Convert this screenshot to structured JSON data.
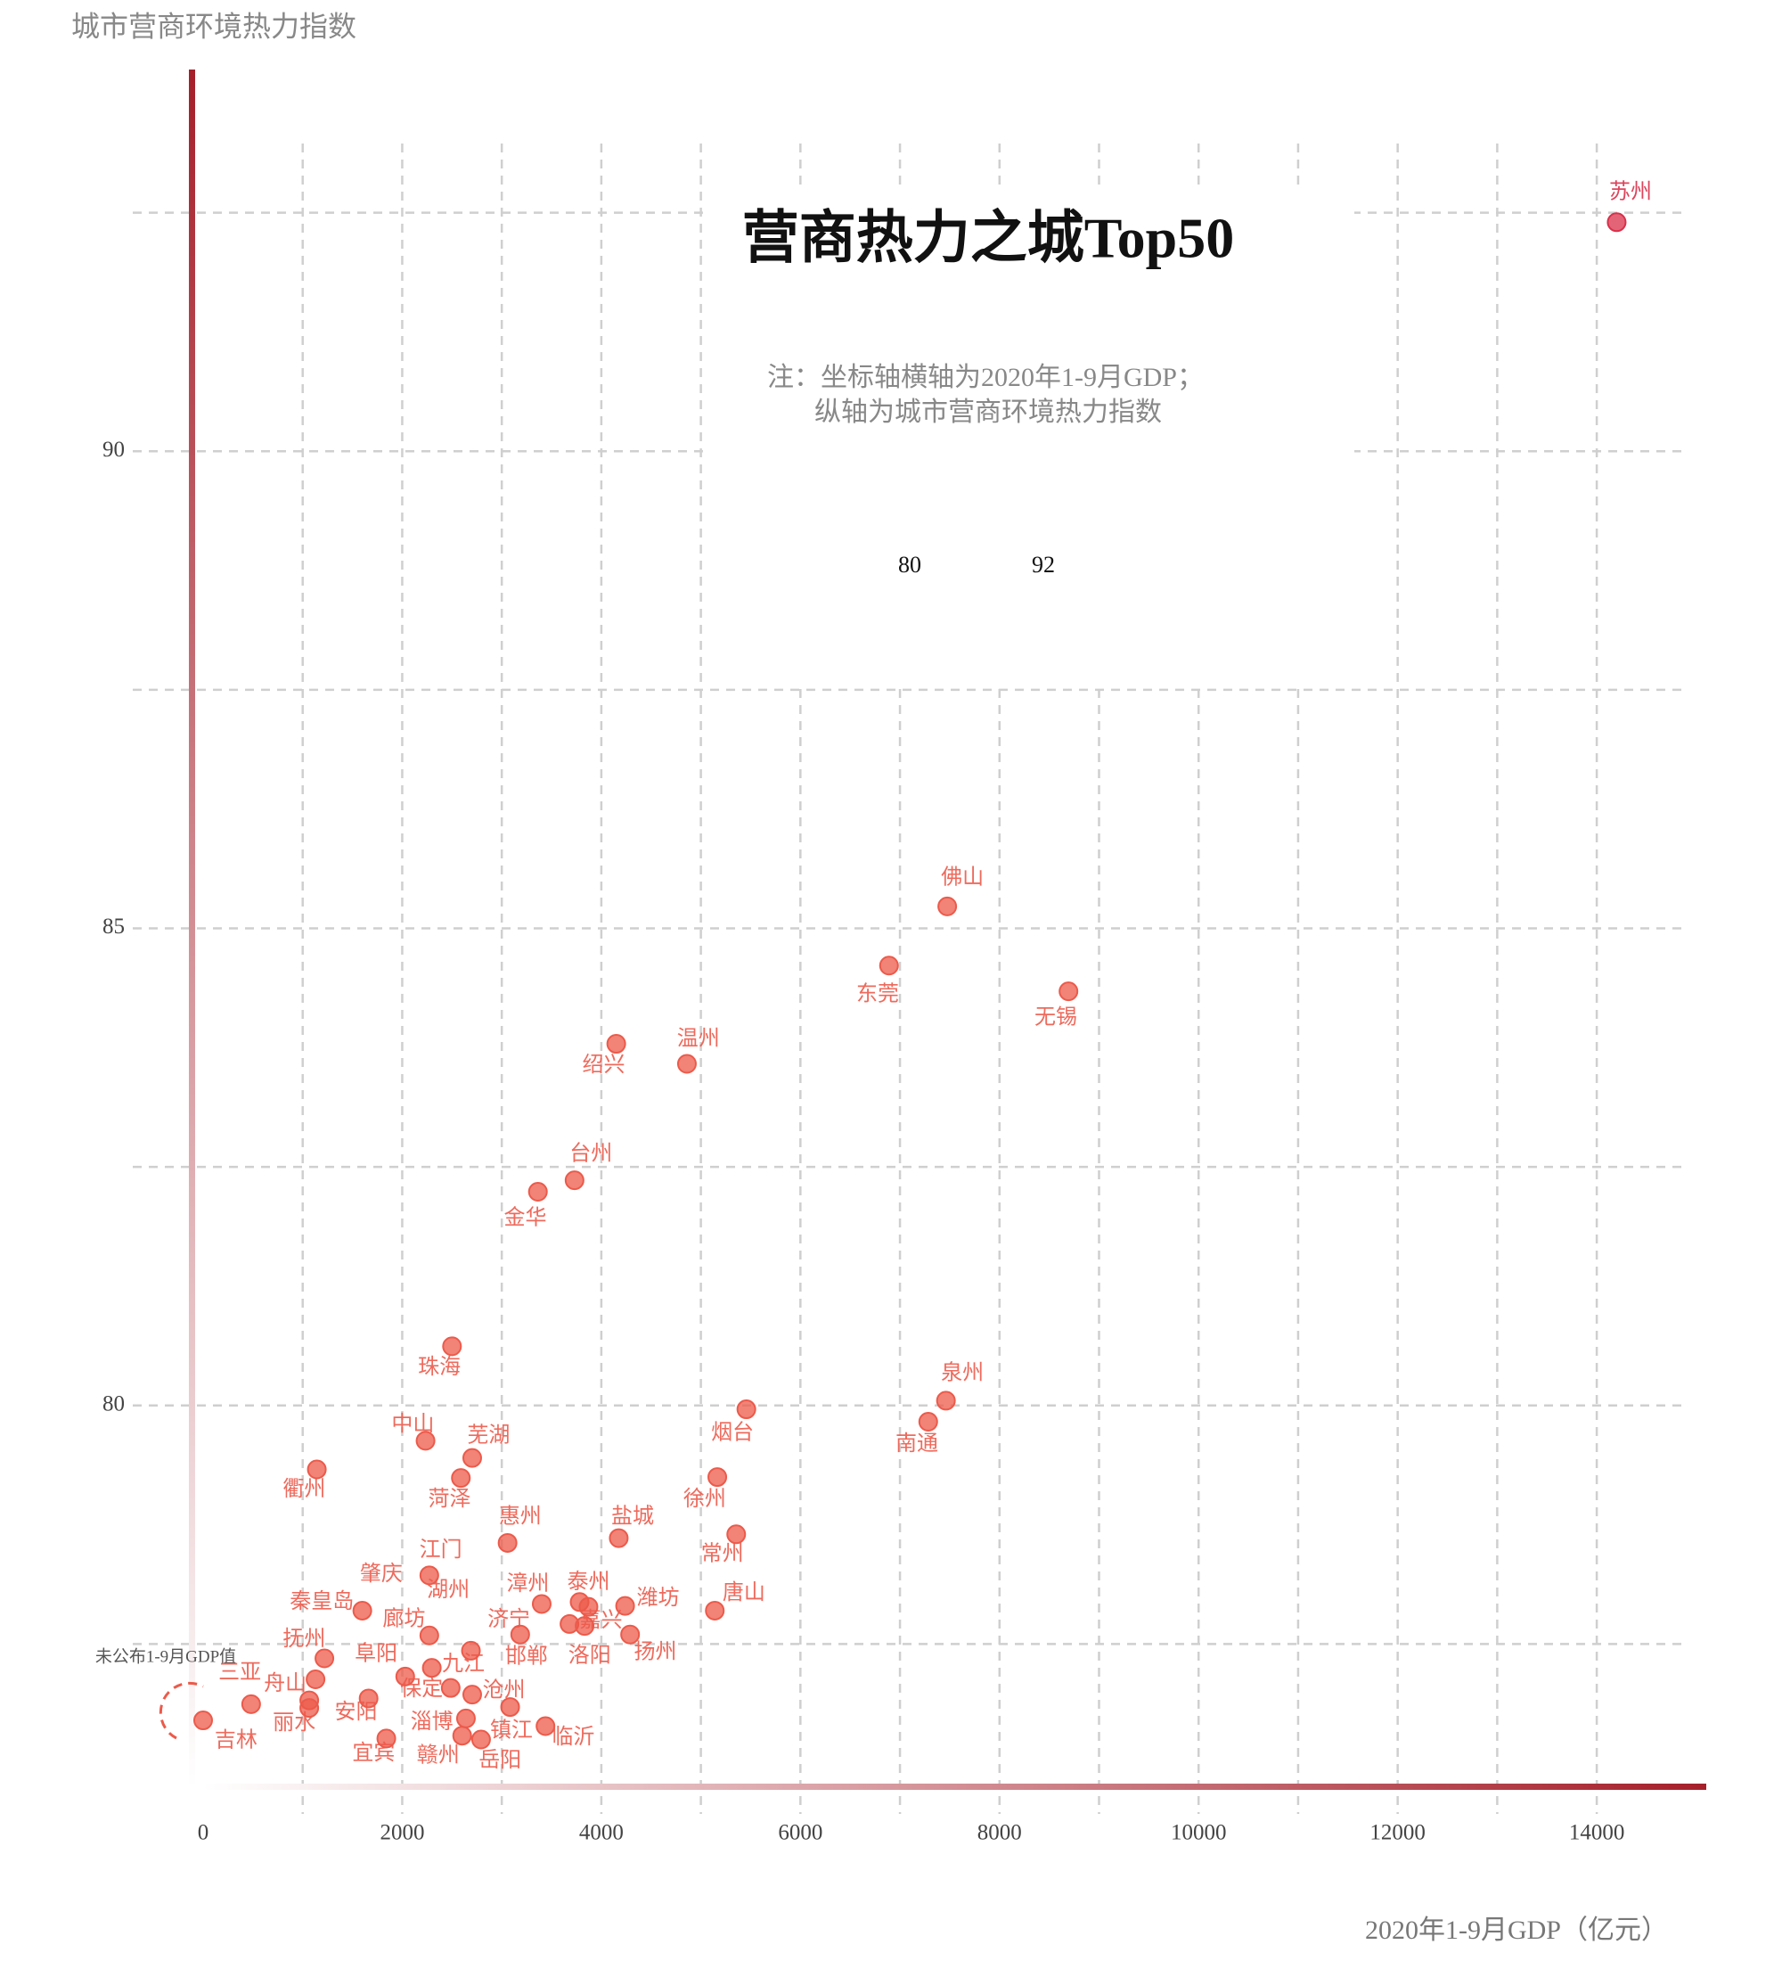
{
  "chart_data": {
    "type": "scatter",
    "title": "营商热力之城Top50",
    "subtitle": [
      "注：坐标轴横轴为2020年1-9月GDP；",
      "纵轴为城市营商环境热力指数"
    ],
    "x_label": "2020年1-9月GDP（亿元）",
    "y_label": "城市营商环境热力指数",
    "annotations": [
      "80",
      "92",
      "未公布1-9月GDP值"
    ],
    "color": "#ec5a4a",
    "labels": [
      "苏州",
      "佛山",
      "东莞",
      "无锡",
      "绍兴",
      "温州",
      "台州",
      "金华",
      "珠海",
      "烟台",
      "泉州",
      "南通",
      "中山",
      "芜湖",
      "衢州",
      "菏泽",
      "徐州",
      "常州",
      "盐城",
      "惠州",
      "江门",
      "唐山",
      "肇庆",
      "漳州",
      "泰州",
      "潍坊",
      "嘉兴",
      "济宁",
      "湖州",
      "扬州",
      "邯郸",
      "秦皇岛",
      "抚州",
      "舟山",
      "丽水",
      "三亚",
      "吉林",
      "安阳",
      "宜宾",
      "阜阳",
      "廊坊",
      "九江",
      "保定",
      "沧州",
      "淄博",
      "临沂",
      "赣州",
      "岳阳",
      "洛阳",
      "镇江"
    ],
    "x": [
      14200,
      7475,
      6890,
      8693,
      4150,
      4860,
      3731,
      3363,
      2500,
      5457,
      7462,
      7284,
      2234,
      2703,
      1142,
      2589,
      5165,
      5355,
      4175,
      3058,
      2272,
      5140,
      1599,
      3401,
      3782,
      4239,
      3871,
      3185,
      2272,
      4289,
      3680,
      1218,
      1129,
      1066,
      1066,
      482,
      0,
      1662,
      1840,
      2030,
      2297,
      2690,
      2487,
      3084,
      2640,
      3439,
      2602,
      2792,
      3832,
      2703
    ],
    "values": [
      92.4,
      85.23,
      84.61,
      84.34,
      83.79,
      83.58,
      82.36,
      82.24,
      80.62,
      79.96,
      80.05,
      79.83,
      79.63,
      79.45,
      79.33,
      79.24,
      79.25,
      78.65,
      78.61,
      78.56,
      78.22,
      77.85,
      77.85,
      77.92,
      77.94,
      77.9,
      77.89,
      77.6,
      77.59,
      77.6,
      77.71,
      77.35,
      77.13,
      76.91,
      76.83,
      76.87,
      76.7,
      76.93,
      76.51,
      77.16,
      77.25,
      77.43,
      77.04,
      76.84,
      76.72,
      76.64,
      76.54,
      76.5,
      77.69,
      76.97
    ],
    "xlim": [
      0,
      15100
    ],
    "ylim": [
      76,
      94
    ],
    "xticks": [
      0,
      2000,
      4000,
      6000,
      8000,
      10000,
      12000,
      14000
    ],
    "yticks": [
      80,
      85,
      90
    ],
    "xminor": [
      1000,
      3000,
      5000,
      7000,
      9000,
      11000,
      13000
    ],
    "yminor": [
      77.5,
      82.5,
      87.5,
      92.5
    ],
    "grid": true
  }
}
